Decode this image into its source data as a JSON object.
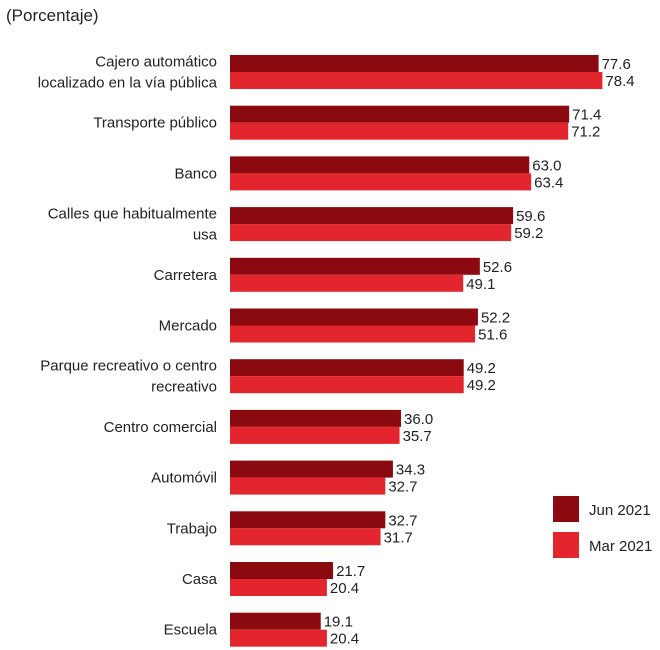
{
  "chart_data": {
    "type": "bar",
    "orientation": "horizontal",
    "subtitle": "(Porcentaje)",
    "categories": [
      [
        "Cajero automático",
        "localizado en la vía pública"
      ],
      [
        "Transporte público"
      ],
      [
        "Banco"
      ],
      [
        "Calles que habitualmente",
        "usa"
      ],
      [
        "Carretera"
      ],
      [
        "Mercado"
      ],
      [
        "Parque recreativo o centro",
        "recreativo"
      ],
      [
        "Centro comercial"
      ],
      [
        "Automóvil"
      ],
      [
        "Trabajo"
      ],
      [
        "Casa"
      ],
      [
        "Escuela"
      ]
    ],
    "series": [
      {
        "name": "Jun 2021",
        "color": "#8b0a0f",
        "values": [
          77.6,
          71.4,
          63.0,
          59.6,
          52.6,
          52.2,
          49.2,
          36.0,
          34.3,
          32.7,
          21.7,
          19.1
        ]
      },
      {
        "name": "Mar 2021",
        "color": "#e3262d",
        "values": [
          78.4,
          71.2,
          63.4,
          59.2,
          49.1,
          51.6,
          49.2,
          35.7,
          32.7,
          31.7,
          20.4,
          20.4
        ]
      }
    ],
    "xlim": [
      0,
      100
    ],
    "decimals": 1,
    "legend_position": "bottom-right",
    "grid": false
  }
}
